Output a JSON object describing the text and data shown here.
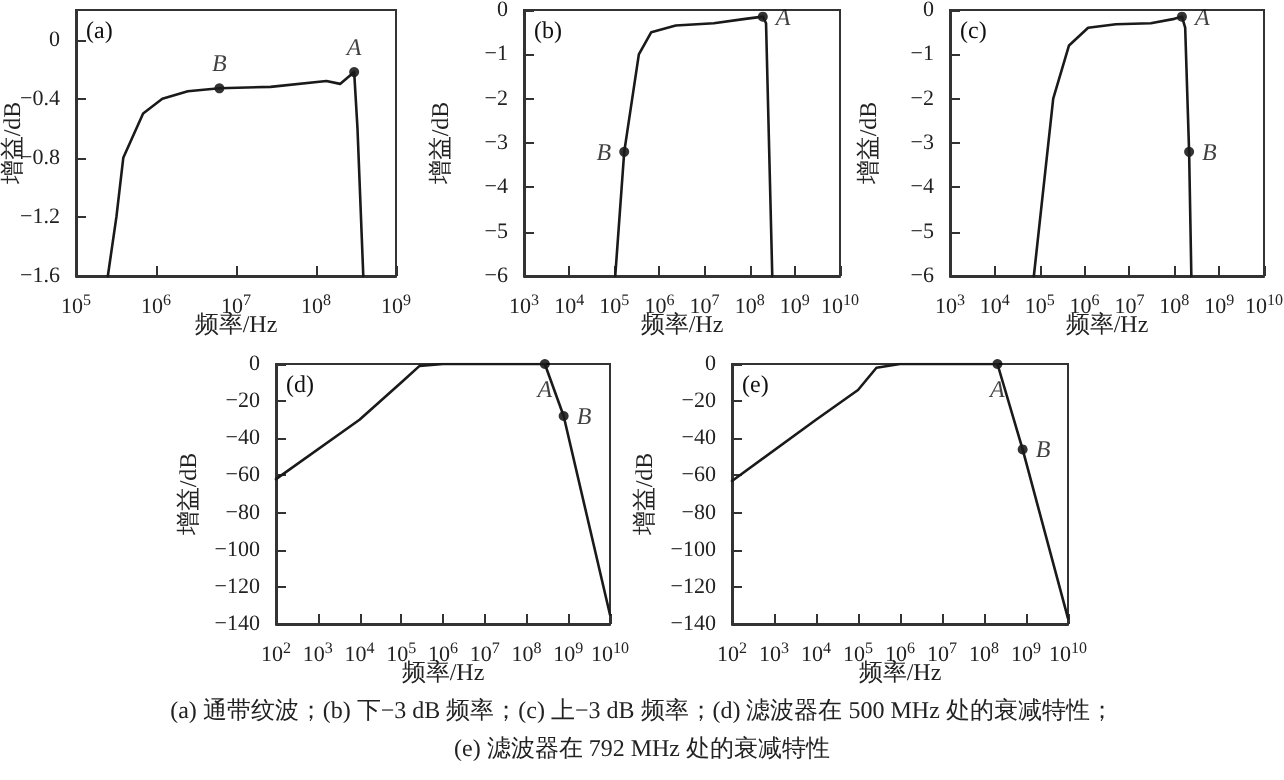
{
  "chart_data": [
    {
      "type": "line",
      "title": "(a)",
      "xlabel": "频率/Hz",
      "ylabel": "增益/dB",
      "grid": false,
      "marker": "none",
      "log": "x",
      "xlim": [
        100000,
        1000000000
      ],
      "xticks": [
        {
          "value": 100000,
          "label": "10$^{5}$"
        },
        {
          "value": 1000000,
          "label": "10$^{6}$"
        },
        {
          "value": 10000000,
          "label": "10$^{7}$"
        },
        {
          "value": 100000000,
          "label": "10$^{8}$"
        },
        {
          "value": 1000000000,
          "label": "10$^{9}$"
        }
      ],
      "ylim": [
        -1.6,
        0.2
      ],
      "yticks": [
        -1.6,
        -1.2,
        -0.8,
        -0.4,
        0
      ],
      "series": [
        {
          "color": "#1a1a1a",
          "x": [
            250000,
            320000,
            390000,
            690000,
            1200000,
            2500000,
            6200000,
            27000000,
            135000000,
            200000000,
            300000000,
            330000000,
            390000000
          ],
          "values": [
            -1.6,
            -1.2,
            -0.8,
            -0.5,
            -0.4,
            -0.35,
            -0.33,
            -0.32,
            -0.28,
            -0.3,
            -0.22,
            -0.6,
            -1.6
          ]
        }
      ],
      "annotations": [
        {
          "text": "B",
          "x": 6200000,
          "y": -0.33
        },
        {
          "text": "A",
          "x": 300000000,
          "y": -0.22
        }
      ]
    },
    {
      "type": "line",
      "title": "(b)",
      "xlabel": "频率/Hz",
      "ylabel": "增益/dB",
      "grid": false,
      "marker": "none",
      "log": "x",
      "xlim": [
        1000,
        10000000000
      ],
      "xticks": [
        {
          "value": 1000,
          "label": "10$^{3}$"
        },
        {
          "value": 10000,
          "label": "10$^{4}$"
        },
        {
          "value": 100000,
          "label": "10$^{5}$"
        },
        {
          "value": 1000000,
          "label": "10$^{6}$"
        },
        {
          "value": 10000000,
          "label": "10$^{7}$"
        },
        {
          "value": 100000000,
          "label": "10$^{8}$"
        },
        {
          "value": 1000000000,
          "label": "10$^{9}$"
        },
        {
          "value": 10000000000,
          "label": "10$^{10}$"
        }
      ],
      "ylim": [
        -6,
        0
      ],
      "yticks": [
        -6,
        -5,
        -4,
        -3,
        -2,
        -1,
        0
      ],
      "series": [
        {
          "color": "#1a1a1a",
          "x": [
            105000,
            166000,
            350000,
            660000,
            2300000,
            16000000,
            80000000,
            195000000,
            230000000,
            316000000
          ],
          "values": [
            -6,
            -3.2,
            -1,
            -0.5,
            -0.35,
            -0.3,
            -0.2,
            -0.15,
            -0.3,
            -6
          ]
        }
      ],
      "annotations": [
        {
          "text": "B",
          "x": 166000,
          "y": -3.2
        },
        {
          "text": "A",
          "x": 195000000,
          "y": -0.15
        }
      ]
    },
    {
      "type": "line",
      "title": "(c)",
      "xlabel": "频率/Hz",
      "ylabel": "增益/dB",
      "grid": false,
      "marker": "none",
      "log": "x",
      "xlim": [
        1000,
        10000000000
      ],
      "xticks": [
        {
          "value": 1000,
          "label": "10$^{3}$"
        },
        {
          "value": 10000,
          "label": "10$^{4}$"
        },
        {
          "value": 100000,
          "label": "10$^{5}$"
        },
        {
          "value": 1000000,
          "label": "10$^{6}$"
        },
        {
          "value": 10000000,
          "label": "10$^{7}$"
        },
        {
          "value": 100000000,
          "label": "10$^{8}$"
        },
        {
          "value": 1000000000,
          "label": "10$^{9}$"
        },
        {
          "value": 10000000000,
          "label": "10$^{10}$"
        }
      ],
      "ylim": [
        -6,
        0
      ],
      "yticks": [
        -6,
        -5,
        -4,
        -3,
        -2,
        -1,
        0
      ],
      "series": [
        {
          "color": "#1a1a1a",
          "x": [
            74000,
            200000,
            450000,
            1200000,
            5000000,
            30000000,
            100000000,
            148000000,
            175000000,
            214000000,
            240000000
          ],
          "values": [
            -6,
            -2,
            -0.8,
            -0.4,
            -0.32,
            -0.3,
            -0.2,
            -0.15,
            -0.4,
            -3.2,
            -6
          ]
        }
      ],
      "annotations": [
        {
          "text": "A",
          "x": 148000000,
          "y": -0.15
        },
        {
          "text": "B",
          "x": 214000000,
          "y": -3.2
        }
      ]
    },
    {
      "type": "line",
      "title": "(d)",
      "xlabel": "频率/Hz",
      "ylabel": "增益/dB",
      "grid": false,
      "marker": "none",
      "log": "x",
      "xlim": [
        100,
        10000000000
      ],
      "xticks": [
        {
          "value": 100,
          "label": "10$^{2}$"
        },
        {
          "value": 1000,
          "label": "10$^{3}$"
        },
        {
          "value": 10000,
          "label": "10$^{4}$"
        },
        {
          "value": 100000,
          "label": "10$^{5}$"
        },
        {
          "value": 1000000,
          "label": "10$^{6}$"
        },
        {
          "value": 10000000,
          "label": "10$^{7}$"
        },
        {
          "value": 100000000,
          "label": "10$^{8}$"
        },
        {
          "value": 1000000000,
          "label": "10$^{9}$"
        },
        {
          "value": 10000000000,
          "label": "10$^{10}$"
        }
      ],
      "ylim": [
        -140,
        0
      ],
      "yticks": [
        -140,
        -120,
        -100,
        -80,
        -60,
        -40,
        -20,
        0
      ],
      "series": [
        {
          "color": "#1a1a1a",
          "x": [
            100,
            10000,
            100000,
            275000,
            1000000,
            275000000,
            776000000,
            10000000000
          ],
          "values": [
            -62,
            -30,
            -10,
            -1,
            0,
            0,
            -28,
            -135
          ]
        }
      ],
      "annotations": [
        {
          "text": "A",
          "x": 275000000,
          "y": 0
        },
        {
          "text": "B",
          "x": 776000000,
          "y": -28
        }
      ]
    },
    {
      "type": "line",
      "title": "(e)",
      "xlabel": "频率/Hz",
      "ylabel": "增益/dB",
      "grid": false,
      "marker": "none",
      "log": "x",
      "xlim": [
        100,
        10000000000
      ],
      "xticks": [
        {
          "value": 100,
          "label": "10$^{2}$"
        },
        {
          "value": 1000,
          "label": "10$^{3}$"
        },
        {
          "value": 10000,
          "label": "10$^{4}$"
        },
        {
          "value": 100000,
          "label": "10$^{5}$"
        },
        {
          "value": 1000000,
          "label": "10$^{6}$"
        },
        {
          "value": 10000000,
          "label": "10$^{7}$"
        },
        {
          "value": 100000000,
          "label": "10$^{8}$"
        },
        {
          "value": 1000000000,
          "label": "10$^{9}$"
        },
        {
          "value": 10000000000,
          "label": "10$^{10}$"
        }
      ],
      "ylim": [
        -140,
        0
      ],
      "yticks": [
        -140,
        -120,
        -100,
        -80,
        -60,
        -40,
        -20,
        0
      ],
      "series": [
        {
          "color": "#1a1a1a",
          "x": [
            100,
            10000,
            100000,
            275000,
            1000000,
            209000000,
            832000000,
            10000000000
          ],
          "values": [
            -63,
            -30,
            -14,
            -2,
            0,
            0,
            -46,
            -137
          ]
        }
      ],
      "annotations": [
        {
          "text": "A",
          "x": 209000000,
          "y": 0
        },
        {
          "text": "B",
          "x": 832000000,
          "y": -46
        },
        "(a)  通带纹波；(b)  下−3 dB 频率；(c)  上−3 dB 频率；(d)  滤波器在 500 MHz 处的衰减特性；",
        "(e)  滤波器在 792 MHz 处的衰减特性"
      ]
    }
  ]
}
